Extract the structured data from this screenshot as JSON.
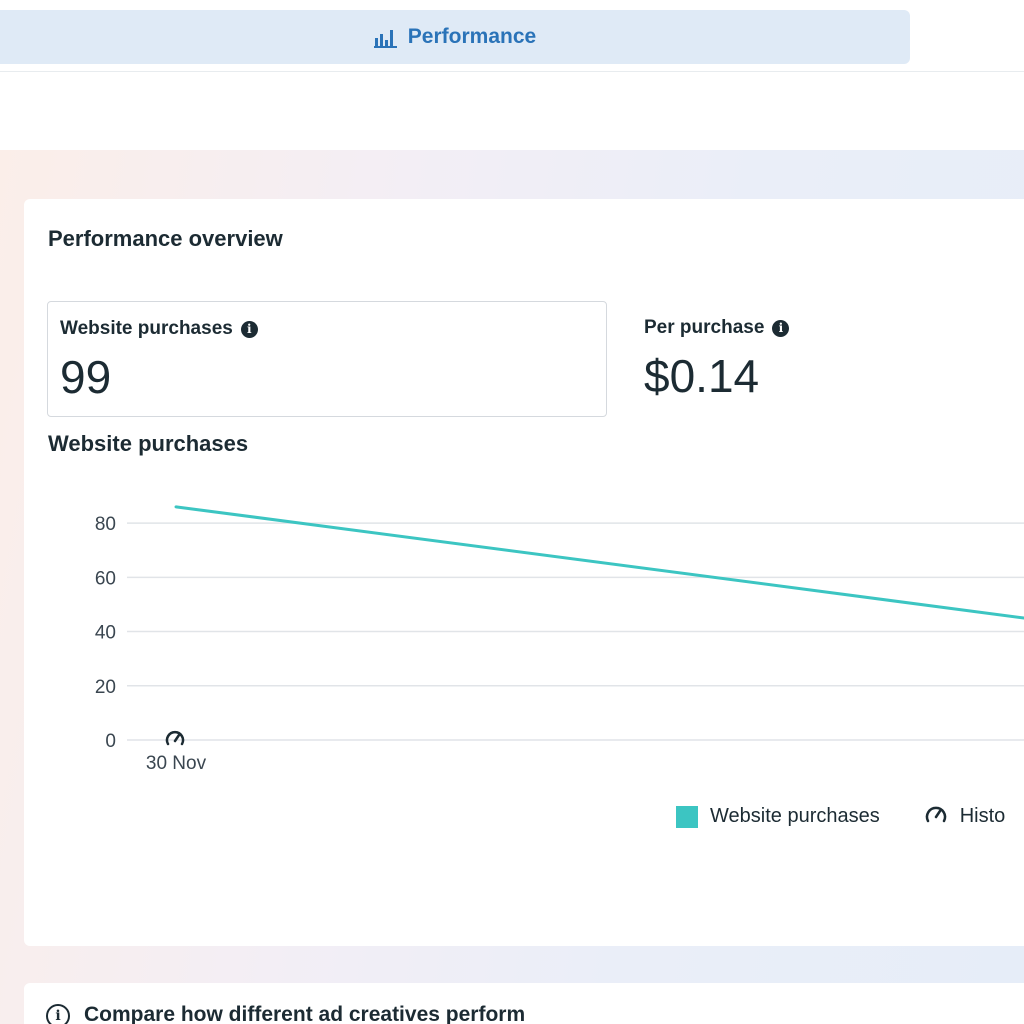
{
  "tabs": {
    "performance_label": "Performance",
    "icon": "bar-chart-icon"
  },
  "overview": {
    "title": "Performance overview",
    "metrics": [
      {
        "label": "Website purchases",
        "value": "99",
        "info_icon": "info-icon"
      },
      {
        "label": "Per purchase",
        "value": "$0.14",
        "info_icon": "info-icon"
      }
    ]
  },
  "chart": {
    "title": "Website purchases",
    "legend": [
      {
        "label": "Website purchases",
        "color": "#3cc5c2"
      },
      {
        "label": "Histo",
        "icon": "speedometer-icon"
      }
    ]
  },
  "chart_data": {
    "type": "line",
    "title": "Website purchases",
    "x_tick_labels": [
      "30 Nov"
    ],
    "y_ticks": [
      0,
      20,
      40,
      60,
      80
    ],
    "ylim": [
      0,
      90
    ],
    "grid": true,
    "legend_position": "bottom-right",
    "series": [
      {
        "name": "Website purchases",
        "color": "#3cc5c2",
        "points": [
          {
            "x": "30 Nov",
            "y": 86
          },
          {
            "x": "(next date, off-screen)",
            "y": 45
          }
        ]
      }
    ],
    "markers": [
      {
        "x": "30 Nov",
        "icon": "speedometer-icon"
      }
    ]
  },
  "compare": {
    "title": "Compare how different ad creatives perform"
  }
}
